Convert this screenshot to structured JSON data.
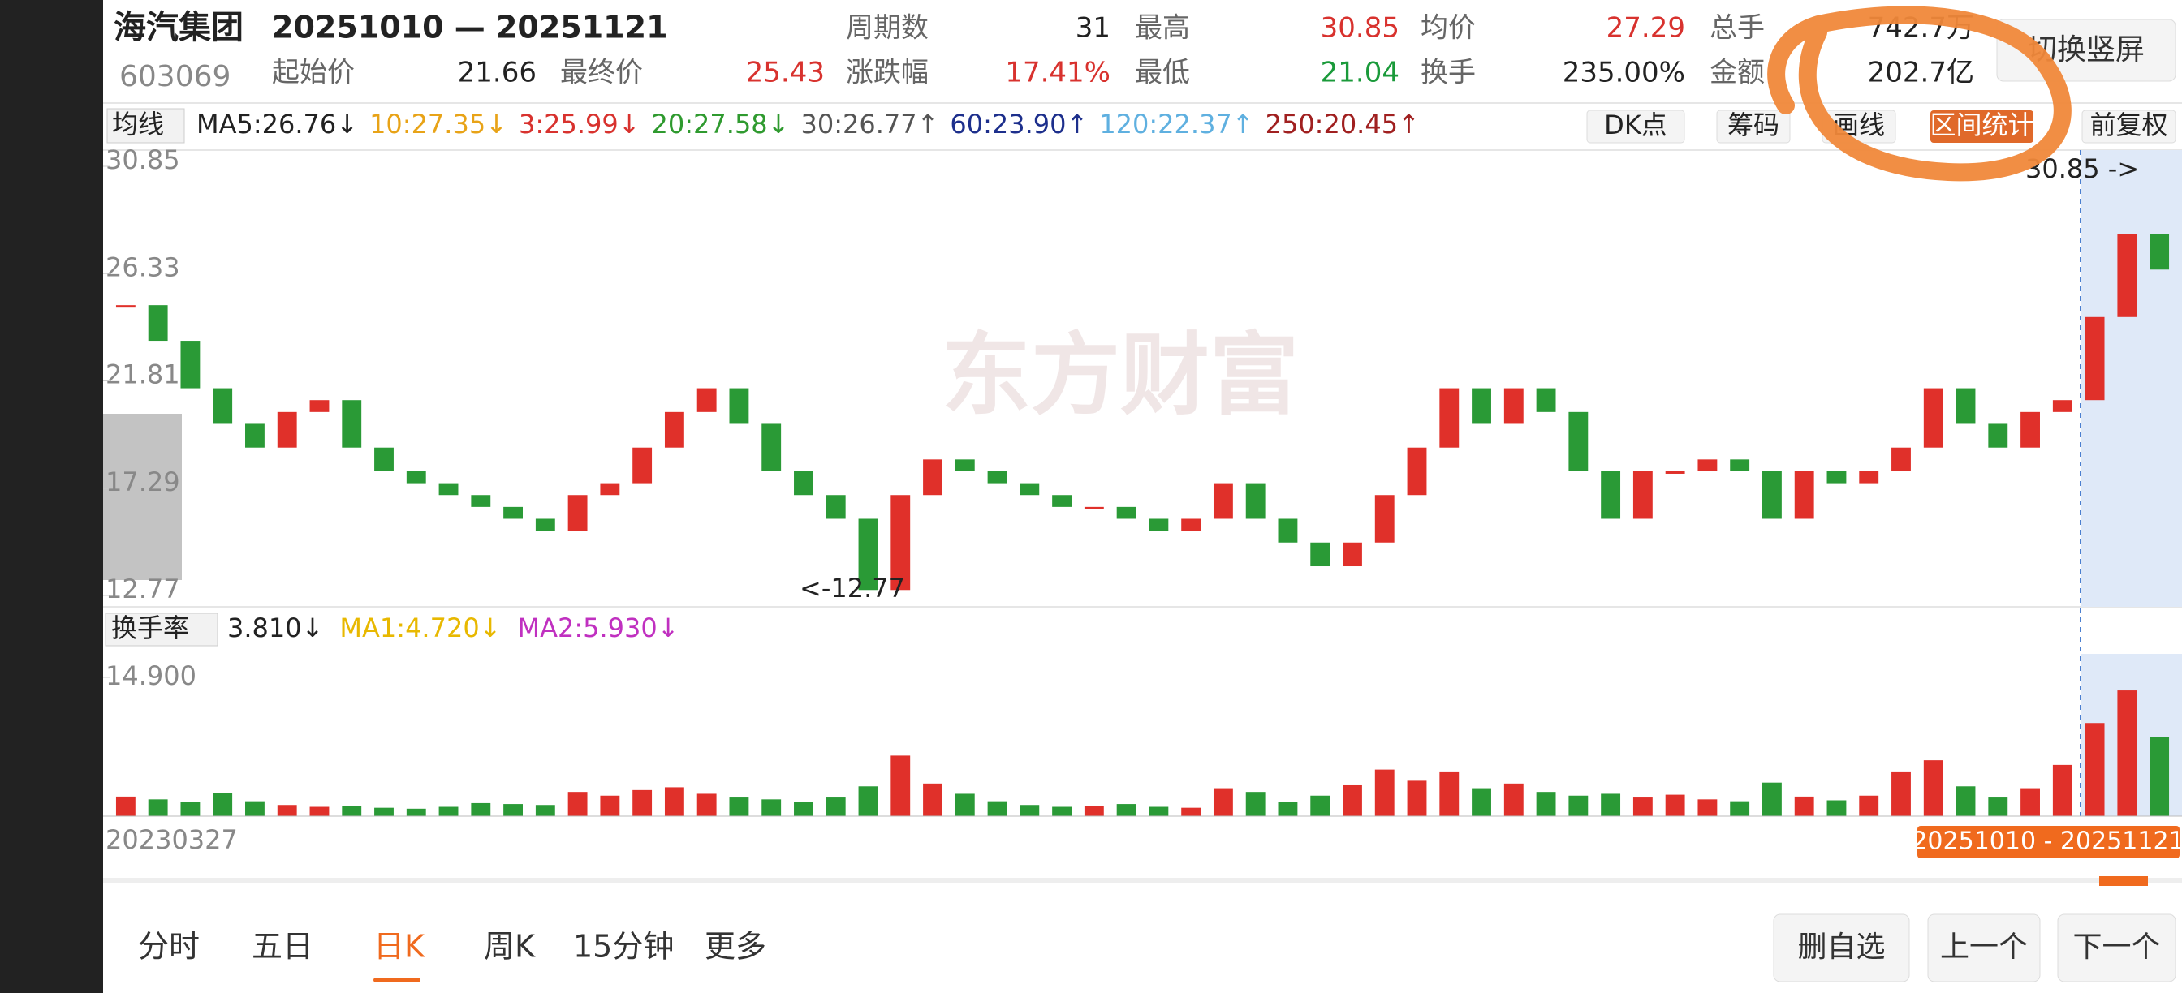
{
  "header": {
    "name": "海汽集团",
    "code": "603069",
    "range": "20251010 — 20251121",
    "stats": [
      {
        "label": "周期数",
        "value": "31",
        "color": "#222"
      },
      {
        "label": "最高",
        "value": "30.85",
        "color": "#d8322e"
      },
      {
        "label": "均价",
        "value": "27.29",
        "color": "#d8322e"
      },
      {
        "label": "总手",
        "value": "742.7万",
        "color": "#222"
      },
      {
        "label": "起始价",
        "value": "21.66",
        "color": "#222"
      },
      {
        "label": "最终价",
        "value": "25.43",
        "color": "#d8322e"
      },
      {
        "label": "涨跌幅",
        "value": "17.41%",
        "color": "#d8322e"
      },
      {
        "label": "最低",
        "value": "21.04",
        "color": "#1a9a3a"
      },
      {
        "label": "换手",
        "value": "235.00%",
        "color": "#222"
      },
      {
        "label": "金额",
        "value": "202.7亿",
        "color": "#222"
      }
    ],
    "switch": "切换竖屏"
  },
  "ma_bar": {
    "menu": "均线",
    "items": [
      {
        "text": "MA5:26.76↓",
        "color": "#222"
      },
      {
        "text": "10:27.35↓",
        "color": "#e8a317"
      },
      {
        "text": "3:25.99↓",
        "color": "#d8322e"
      },
      {
        "text": "20:27.58↓",
        "color": "#2f9a2f"
      },
      {
        "text": "30:26.77↑",
        "color": "#555"
      },
      {
        "text": "60:23.90↑",
        "color": "#1d2f8c"
      },
      {
        "text": "120:22.37↑",
        "color": "#5fb0e0"
      },
      {
        "text": "250:20.45↑",
        "color": "#a02020"
      }
    ],
    "buttons": [
      "DK点",
      "筹码",
      "画线",
      "区间统计",
      "前复权"
    ]
  },
  "watermark": "东方财富",
  "chart_data": [
    {
      "type": "candlestick",
      "ylim": [
        12.77,
        30.85
      ],
      "yticks": [
        30.85,
        26.33,
        21.81,
        17.29,
        12.77
      ],
      "values": [
        25,
        23.5,
        21.5,
        20,
        19,
        20.5,
        21,
        19,
        18,
        17.5,
        17,
        16.5,
        16,
        15.5,
        17,
        17.5,
        19,
        20.5,
        21.5,
        20,
        18,
        17,
        16,
        13,
        17,
        18.5,
        18,
        17.5,
        17,
        16.5,
        16.5,
        16,
        15.5,
        16,
        17.5,
        16,
        15,
        14,
        15,
        17,
        19,
        21.5,
        20,
        21.5,
        20.5,
        18,
        16,
        18,
        18,
        18.5,
        18,
        16,
        18,
        17.5,
        18,
        19,
        21.5,
        20,
        19,
        20.5,
        21,
        24.5,
        28,
        26.5
      ],
      "annotations": [
        "<-12.77",
        "30.85 ->"
      ]
    },
    {
      "type": "bar",
      "menu": "换手率",
      "ylim": [
        0,
        14.9
      ],
      "yticks": [
        {
          "value": 14.9,
          "label": "14.900"
        }
      ],
      "legend": [
        {
          "text": "3.810↓",
          "color": "#222"
        },
        {
          "text": "MA1:4.720↓",
          "color": "#e8b800"
        },
        {
          "text": "MA2:5.930↓",
          "color": "#c030c0"
        }
      ],
      "values": [
        2.1,
        1.8,
        1.5,
        2.5,
        1.6,
        1.2,
        1.0,
        1.1,
        0.9,
        0.8,
        1.0,
        1.4,
        1.3,
        1.2,
        2.6,
        2.2,
        2.8,
        3.1,
        2.4,
        2.0,
        1.8,
        1.5,
        2.0,
        3.2,
        6.5,
        3.5,
        2.4,
        1.6,
        1.2,
        1.0,
        1.1,
        1.3,
        1.0,
        0.9,
        3.0,
        2.6,
        1.5,
        2.2,
        3.4,
        5.0,
        3.8,
        4.8,
        3.0,
        3.5,
        2.6,
        2.2,
        2.4,
        2.0,
        2.3,
        1.8,
        1.6,
        3.6,
        2.1,
        1.7,
        2.2,
        4.8,
        6.0,
        3.2,
        2.0,
        3.0,
        5.5,
        10.0,
        13.5,
        8.5
      ]
    }
  ],
  "footer": {
    "start_date": "20230327",
    "selection": "20251010 - 20251121",
    "tabs": [
      "分时",
      "五日",
      "日K",
      "周K",
      "15分钟",
      "更多"
    ],
    "active_tab": 2,
    "actions": [
      "删自选",
      "上一个",
      "下一个"
    ]
  }
}
